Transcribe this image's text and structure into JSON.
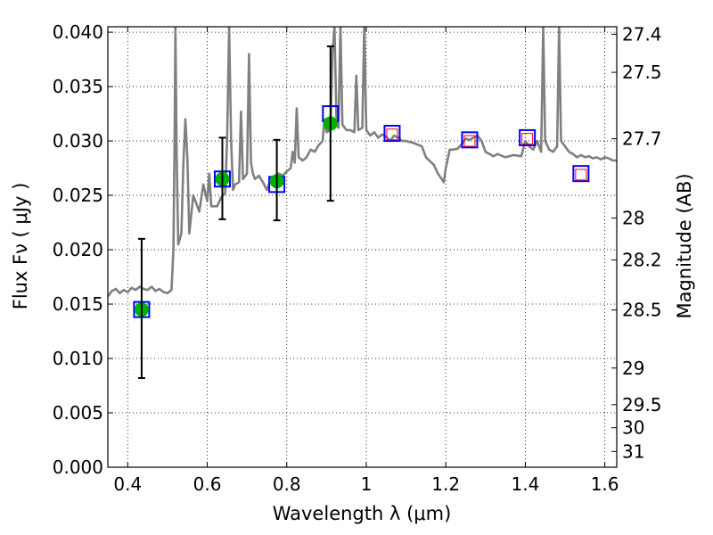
{
  "chart_data": {
    "type": "scatter",
    "xlabel": "Wavelength  λ (μm)",
    "ylabel": "Flux  Fν  ( μJy )",
    "ylabel_right": "Magnitude (AB)",
    "xlim": [
      0.35,
      1.63
    ],
    "ylim": [
      0.0,
      0.0405
    ],
    "grid": true,
    "x_ticks": [
      {
        "value": 0.4,
        "label": "0.4"
      },
      {
        "value": 0.6,
        "label": "0.6"
      },
      {
        "value": 0.8,
        "label": "0.8"
      },
      {
        "value": 1.0,
        "label": "1"
      },
      {
        "value": 1.2,
        "label": "1.2"
      },
      {
        "value": 1.4,
        "label": "1.4"
      },
      {
        "value": 1.6,
        "label": "1.6"
      }
    ],
    "y_ticks": [
      {
        "value": 0.0,
        "label": "0.000"
      },
      {
        "value": 0.005,
        "label": "0.005"
      },
      {
        "value": 0.01,
        "label": "0.010"
      },
      {
        "value": 0.015,
        "label": "0.015"
      },
      {
        "value": 0.02,
        "label": "0.020"
      },
      {
        "value": 0.025,
        "label": "0.025"
      },
      {
        "value": 0.03,
        "label": "0.030"
      },
      {
        "value": 0.035,
        "label": "0.035"
      },
      {
        "value": 0.04,
        "label": "0.040"
      }
    ],
    "right_ticks": [
      {
        "value": 27.4,
        "label": "27.4"
      },
      {
        "value": 27.5,
        "label": "27.5"
      },
      {
        "value": 27.7,
        "label": "27.7"
      },
      {
        "value": 28,
        "label": "28"
      },
      {
        "value": 28.2,
        "label": "28.2"
      },
      {
        "value": 28.5,
        "label": "28.5"
      },
      {
        "value": 29,
        "label": "29"
      },
      {
        "value": 29.5,
        "label": "29.5"
      },
      {
        "value": 30,
        "label": "30"
      },
      {
        "value": 31,
        "label": "31"
      }
    ],
    "series": [
      {
        "kind": "line",
        "color": "#808080",
        "points": [
          [
            0.35,
            0.0157
          ],
          [
            0.36,
            0.0162
          ],
          [
            0.37,
            0.0164
          ],
          [
            0.38,
            0.016
          ],
          [
            0.39,
            0.0163
          ],
          [
            0.4,
            0.0161
          ],
          [
            0.41,
            0.0165
          ],
          [
            0.42,
            0.0163
          ],
          [
            0.43,
            0.0166
          ],
          [
            0.44,
            0.0164
          ],
          [
            0.45,
            0.0163
          ],
          [
            0.46,
            0.0166
          ],
          [
            0.47,
            0.0162
          ],
          [
            0.48,
            0.0164
          ],
          [
            0.49,
            0.0161
          ],
          [
            0.5,
            0.016
          ],
          [
            0.51,
            0.0163
          ],
          [
            0.515,
            0.02
          ],
          [
            0.518,
            0.03
          ],
          [
            0.52,
            0.0405
          ],
          [
            0.523,
            0.029
          ],
          [
            0.527,
            0.0205
          ],
          [
            0.535,
            0.0215
          ],
          [
            0.54,
            0.028
          ],
          [
            0.545,
            0.032
          ],
          [
            0.55,
            0.0285
          ],
          [
            0.555,
            0.0215
          ],
          [
            0.565,
            0.025
          ],
          [
            0.575,
            0.024
          ],
          [
            0.58,
            0.0235
          ],
          [
            0.59,
            0.026
          ],
          [
            0.6,
            0.0245
          ],
          [
            0.605,
            0.027
          ],
          [
            0.61,
            0.024
          ],
          [
            0.625,
            0.024
          ],
          [
            0.635,
            0.0248
          ],
          [
            0.645,
            0.0252
          ],
          [
            0.65,
            0.03
          ],
          [
            0.655,
            0.0405
          ],
          [
            0.66,
            0.03
          ],
          [
            0.665,
            0.0255
          ],
          [
            0.67,
            0.026
          ],
          [
            0.68,
            0.0262
          ],
          [
            0.685,
            0.0327
          ],
          [
            0.69,
            0.0265
          ],
          [
            0.7,
            0.027
          ],
          [
            0.705,
            0.038
          ],
          [
            0.71,
            0.028
          ],
          [
            0.715,
            0.027
          ],
          [
            0.72,
            0.0265
          ],
          [
            0.73,
            0.0268
          ],
          [
            0.74,
            0.0262
          ],
          [
            0.75,
            0.0255
          ],
          [
            0.76,
            0.0265
          ],
          [
            0.77,
            0.0262
          ],
          [
            0.78,
            0.027
          ],
          [
            0.79,
            0.0268
          ],
          [
            0.8,
            0.0272
          ],
          [
            0.81,
            0.0275
          ],
          [
            0.815,
            0.029
          ],
          [
            0.82,
            0.028
          ],
          [
            0.825,
            0.033
          ],
          [
            0.83,
            0.0285
          ],
          [
            0.84,
            0.0282
          ],
          [
            0.85,
            0.0285
          ],
          [
            0.86,
            0.0292
          ],
          [
            0.87,
            0.029
          ],
          [
            0.88,
            0.0296
          ],
          [
            0.89,
            0.03
          ],
          [
            0.895,
            0.032
          ],
          [
            0.9,
            0.0308
          ],
          [
            0.91,
            0.031
          ],
          [
            0.915,
            0.038
          ],
          [
            0.92,
            0.0405
          ],
          [
            0.925,
            0.032
          ],
          [
            0.93,
            0.0312
          ],
          [
            0.935,
            0.0405
          ],
          [
            0.94,
            0.0315
          ],
          [
            0.95,
            0.031
          ],
          [
            0.96,
            0.031
          ],
          [
            0.97,
            0.0308
          ],
          [
            0.975,
            0.036
          ],
          [
            0.98,
            0.031
          ],
          [
            0.99,
            0.0312
          ],
          [
            0.995,
            0.0405
          ],
          [
            1.0,
            0.031
          ],
          [
            1.01,
            0.0305
          ],
          [
            1.02,
            0.0308
          ],
          [
            1.03,
            0.0303
          ],
          [
            1.04,
            0.0306
          ],
          [
            1.05,
            0.0304
          ],
          [
            1.06,
            0.03
          ],
          [
            1.07,
            0.0305
          ],
          [
            1.08,
            0.0303
          ],
          [
            1.09,
            0.03
          ],
          [
            1.1,
            0.03
          ],
          [
            1.12,
            0.0298
          ],
          [
            1.14,
            0.0295
          ],
          [
            1.15,
            0.0285
          ],
          [
            1.17,
            0.0278
          ],
          [
            1.18,
            0.027
          ],
          [
            1.19,
            0.0265
          ],
          [
            1.195,
            0.0262
          ],
          [
            1.2,
            0.0275
          ],
          [
            1.21,
            0.0292
          ],
          [
            1.22,
            0.0292
          ],
          [
            1.23,
            0.0293
          ],
          [
            1.24,
            0.0297
          ],
          [
            1.25,
            0.0302
          ],
          [
            1.26,
            0.0301
          ],
          [
            1.27,
            0.0303
          ],
          [
            1.28,
            0.0305
          ],
          [
            1.29,
            0.03
          ],
          [
            1.3,
            0.029
          ],
          [
            1.31,
            0.0288
          ],
          [
            1.32,
            0.0286
          ],
          [
            1.33,
            0.0288
          ],
          [
            1.35,
            0.0285
          ],
          [
            1.37,
            0.0287
          ],
          [
            1.39,
            0.0286
          ],
          [
            1.4,
            0.03
          ],
          [
            1.41,
            0.0295
          ],
          [
            1.42,
            0.0292
          ],
          [
            1.43,
            0.03
          ],
          [
            1.44,
            0.029
          ],
          [
            1.445,
            0.0405
          ],
          [
            1.45,
            0.03
          ],
          [
            1.46,
            0.0292
          ],
          [
            1.47,
            0.029
          ],
          [
            1.48,
            0.0295
          ],
          [
            1.485,
            0.0405
          ],
          [
            1.49,
            0.03
          ],
          [
            1.5,
            0.0295
          ],
          [
            1.51,
            0.029
          ],
          [
            1.52,
            0.0288
          ],
          [
            1.53,
            0.0285
          ],
          [
            1.54,
            0.0287
          ],
          [
            1.55,
            0.0285
          ],
          [
            1.56,
            0.0286
          ],
          [
            1.57,
            0.0284
          ],
          [
            1.58,
            0.0285
          ],
          [
            1.59,
            0.0283
          ],
          [
            1.6,
            0.0285
          ],
          [
            1.61,
            0.0284
          ],
          [
            1.62,
            0.0282
          ],
          [
            1.63,
            0.0282
          ]
        ]
      },
      {
        "kind": "squares",
        "edge_color": "#0000ff",
        "points": [
          [
            0.435,
            0.0145
          ],
          [
            0.638,
            0.0265
          ],
          [
            0.775,
            0.026
          ],
          [
            0.91,
            0.0325
          ],
          [
            1.065,
            0.0307
          ],
          [
            1.26,
            0.0301
          ],
          [
            1.405,
            0.0303
          ],
          [
            1.54,
            0.027
          ]
        ]
      },
      {
        "kind": "open_squares",
        "edge_color": "#ff0000",
        "points": [
          [
            1.065,
            0.0306
          ],
          [
            1.26,
            0.03
          ],
          [
            1.405,
            0.0302
          ],
          [
            1.54,
            0.0269
          ]
        ]
      },
      {
        "kind": "filled_circles",
        "color": "#00b000",
        "points": [
          [
            0.435,
            0.0145
          ],
          [
            0.638,
            0.0265
          ],
          [
            0.775,
            0.0263
          ],
          [
            0.91,
            0.0316
          ]
        ]
      },
      {
        "kind": "errorbars",
        "color": "#000000",
        "points": [
          {
            "x": 0.435,
            "lo": 0.0082,
            "hi": 0.021
          },
          {
            "x": 0.638,
            "lo": 0.0228,
            "hi": 0.0303
          },
          {
            "x": 0.775,
            "lo": 0.0227,
            "hi": 0.0301
          },
          {
            "x": 0.91,
            "lo": 0.0245,
            "hi": 0.0387
          }
        ]
      }
    ]
  }
}
